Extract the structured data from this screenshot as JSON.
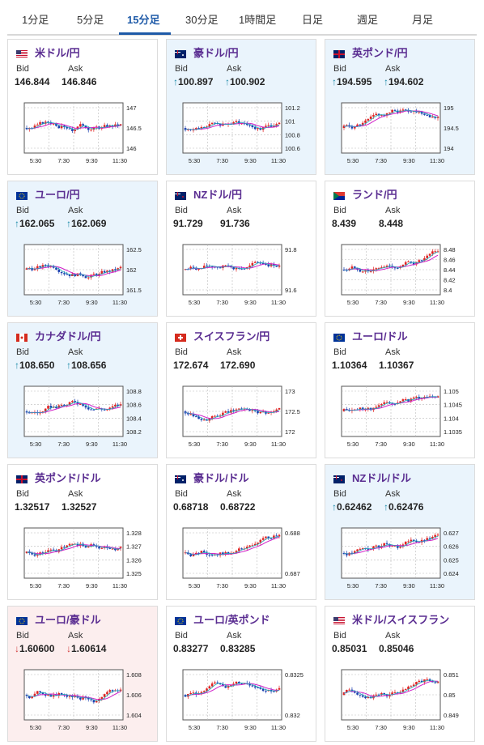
{
  "tabs": [
    {
      "label": "1分足"
    },
    {
      "label": "5分足"
    },
    {
      "label": "15分足"
    },
    {
      "label": "30分足"
    },
    {
      "label": "1時間足"
    },
    {
      "label": "日足"
    },
    {
      "label": "週足"
    },
    {
      "label": "月足"
    }
  ],
  "active_tab": "15分足",
  "labels": {
    "bid": "Bid",
    "ask": "Ask"
  },
  "colors": {
    "active_tab": "#1e5aa8",
    "pair_name": "#5a2d91",
    "up_bg": "#eaf4fc",
    "down_bg": "#fceeee",
    "candle_up": "#e02424",
    "candle_down": "#1a3fb0",
    "ma_long": "#d020c8",
    "ma_short": "#20a8b8"
  },
  "cards": [
    {
      "pair": "米ドル/円",
      "flag": "us-flag",
      "trend": "none",
      "bid": "146.844",
      "ask": "146.846",
      "bid_arrow": "",
      "ask_arrow": "",
      "xticks": [
        "5:30",
        "7:30",
        "9:30",
        "11:30"
      ],
      "yticks": [
        "147",
        "146.5",
        "146"
      ]
    },
    {
      "pair": "豪ドル/円",
      "flag": "au-flag",
      "trend": "up",
      "bid": "100.897",
      "ask": "100.902",
      "bid_arrow": "↑",
      "ask_arrow": "↑",
      "xticks": [
        "5:30",
        "7:30",
        "9:30",
        "11:30"
      ],
      "yticks": [
        "101.2",
        "101",
        "100.8",
        "100.6"
      ]
    },
    {
      "pair": "英ポンド/円",
      "flag": "uk-flag",
      "trend": "up",
      "bid": "194.595",
      "ask": "194.602",
      "bid_arrow": "↑",
      "ask_arrow": "↑",
      "xticks": [
        "5:30",
        "7:30",
        "9:30",
        "11:30"
      ],
      "yticks": [
        "195",
        "194.5",
        "194"
      ]
    },
    {
      "pair": "ユーロ/円",
      "flag": "eu-flag",
      "trend": "up",
      "bid": "162.065",
      "ask": "162.069",
      "bid_arrow": "↑",
      "ask_arrow": "↑",
      "xticks": [
        "5:30",
        "7:30",
        "9:30",
        "11:30"
      ],
      "yticks": [
        "162.5",
        "162",
        "161.5"
      ]
    },
    {
      "pair": "NZドル/円",
      "flag": "nz-flag",
      "trend": "none",
      "bid": "91.729",
      "ask": "91.736",
      "bid_arrow": "",
      "ask_arrow": "",
      "xticks": [
        "5:30",
        "7:30",
        "9:30",
        "11:30"
      ],
      "yticks": [
        "91.8",
        "91.6"
      ]
    },
    {
      "pair": "ランド/円",
      "flag": "za-flag",
      "trend": "none",
      "bid": "8.439",
      "ask": "8.448",
      "bid_arrow": "",
      "ask_arrow": "",
      "xticks": [
        "5:30",
        "7:30",
        "9:30",
        "11:30"
      ],
      "yticks": [
        "8.48",
        "8.46",
        "8.44",
        "8.42",
        "8.4"
      ]
    },
    {
      "pair": "カナダドル/円",
      "flag": "ca-flag",
      "trend": "up",
      "bid": "108.650",
      "ask": "108.656",
      "bid_arrow": "↑",
      "ask_arrow": "↑",
      "xticks": [
        "5:30",
        "7:30",
        "9:30",
        "11:30"
      ],
      "yticks": [
        "108.8",
        "108.6",
        "108.4",
        "108.2"
      ]
    },
    {
      "pair": "スイスフラン/円",
      "flag": "ch-flag",
      "trend": "none",
      "bid": "172.674",
      "ask": "172.690",
      "bid_arrow": "",
      "ask_arrow": "",
      "xticks": [
        "5:30",
        "7:30",
        "9:30",
        "11:30"
      ],
      "yticks": [
        "173",
        "172.5",
        "172"
      ]
    },
    {
      "pair": "ユーロ/ドル",
      "flag": "eu-flag",
      "trend": "none",
      "bid": "1.10364",
      "ask": "1.10367",
      "bid_arrow": "",
      "ask_arrow": "",
      "xticks": [
        "5:30",
        "7:30",
        "9:30",
        "11:30"
      ],
      "yticks": [
        "1.105",
        "1.1045",
        "1.104",
        "1.1035"
      ]
    },
    {
      "pair": "英ポンド/ドル",
      "flag": "uk-flag",
      "trend": "none",
      "bid": "1.32517",
      "ask": "1.32527",
      "bid_arrow": "",
      "ask_arrow": "",
      "xticks": [
        "5:30",
        "7:30",
        "9:30",
        "11:30"
      ],
      "yticks": [
        "1.328",
        "1.327",
        "1.326",
        "1.325"
      ]
    },
    {
      "pair": "豪ドル/ドル",
      "flag": "au-flag",
      "trend": "none",
      "bid": "0.68718",
      "ask": "0.68722",
      "bid_arrow": "",
      "ask_arrow": "",
      "xticks": [
        "5:30",
        "7:30",
        "9:30",
        "11:30"
      ],
      "yticks": [
        "0.688",
        "0.687"
      ]
    },
    {
      "pair": "NZドル/ドル",
      "flag": "nz-flag",
      "trend": "up",
      "bid": "0.62462",
      "ask": "0.62476",
      "bid_arrow": "↑",
      "ask_arrow": "↑",
      "xticks": [
        "5:30",
        "7:30",
        "9:30",
        "11:30"
      ],
      "yticks": [
        "0.627",
        "0.626",
        "0.625",
        "0.624"
      ]
    },
    {
      "pair": "ユーロ/豪ドル",
      "flag": "eu-flag",
      "trend": "down",
      "bid": "1.60600",
      "ask": "1.60614",
      "bid_arrow": "↓",
      "ask_arrow": "↓",
      "xticks": [
        "5:30",
        "7:30",
        "9:30",
        "11:30"
      ],
      "yticks": [
        "1.608",
        "1.606",
        "1.604"
      ]
    },
    {
      "pair": "ユーロ/英ポンド",
      "flag": "eu-flag",
      "trend": "none",
      "bid": "0.83277",
      "ask": "0.83285",
      "bid_arrow": "",
      "ask_arrow": "",
      "xticks": [
        "5:30",
        "7:30",
        "9:30",
        "11:30"
      ],
      "yticks": [
        "0.8325",
        "0.832"
      ]
    },
    {
      "pair": "米ドル/スイスフラン",
      "flag": "us-flag",
      "trend": "none",
      "bid": "0.85031",
      "ask": "0.85046",
      "bid_arrow": "",
      "ask_arrow": "",
      "xticks": [
        "5:30",
        "7:30",
        "9:30",
        "11:30"
      ],
      "yticks": [
        "0.851",
        "0.85",
        "0.849"
      ]
    }
  ]
}
